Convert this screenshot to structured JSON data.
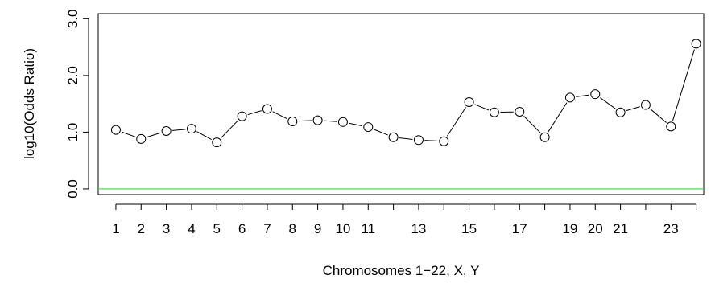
{
  "chart_data": {
    "type": "line",
    "xlabel": "Chromosomes 1−22, X, Y",
    "ylabel": "log10(Odds Ratio)",
    "ylim": [
      0,
      3
    ],
    "yticks": [
      "0.0",
      "1.0",
      "2.0",
      "3.0"
    ],
    "x": [
      1,
      2,
      3,
      4,
      5,
      6,
      7,
      8,
      9,
      10,
      11,
      12,
      13,
      14,
      15,
      16,
      17,
      18,
      19,
      20,
      21,
      22,
      23,
      24
    ],
    "xtick_labels": [
      "1",
      "2",
      "3",
      "4",
      "5",
      "6",
      "7",
      "8",
      "9",
      "10",
      "11",
      "13",
      "15",
      "17",
      "19",
      "20",
      "21",
      "23"
    ],
    "xtick_positions": [
      1,
      2,
      3,
      4,
      5,
      6,
      7,
      8,
      9,
      10,
      11,
      13,
      15,
      17,
      19,
      20,
      21,
      23
    ],
    "values": [
      1.04,
      0.88,
      1.02,
      1.06,
      0.82,
      1.28,
      1.41,
      1.19,
      1.21,
      1.18,
      1.09,
      0.91,
      0.86,
      0.84,
      1.53,
      1.35,
      1.36,
      0.91,
      1.61,
      1.67,
      1.35,
      1.48,
      1.1,
      2.56
    ],
    "reference_line": {
      "y": 0,
      "color": "#33dd33"
    },
    "grid": false,
    "legend": "none"
  }
}
